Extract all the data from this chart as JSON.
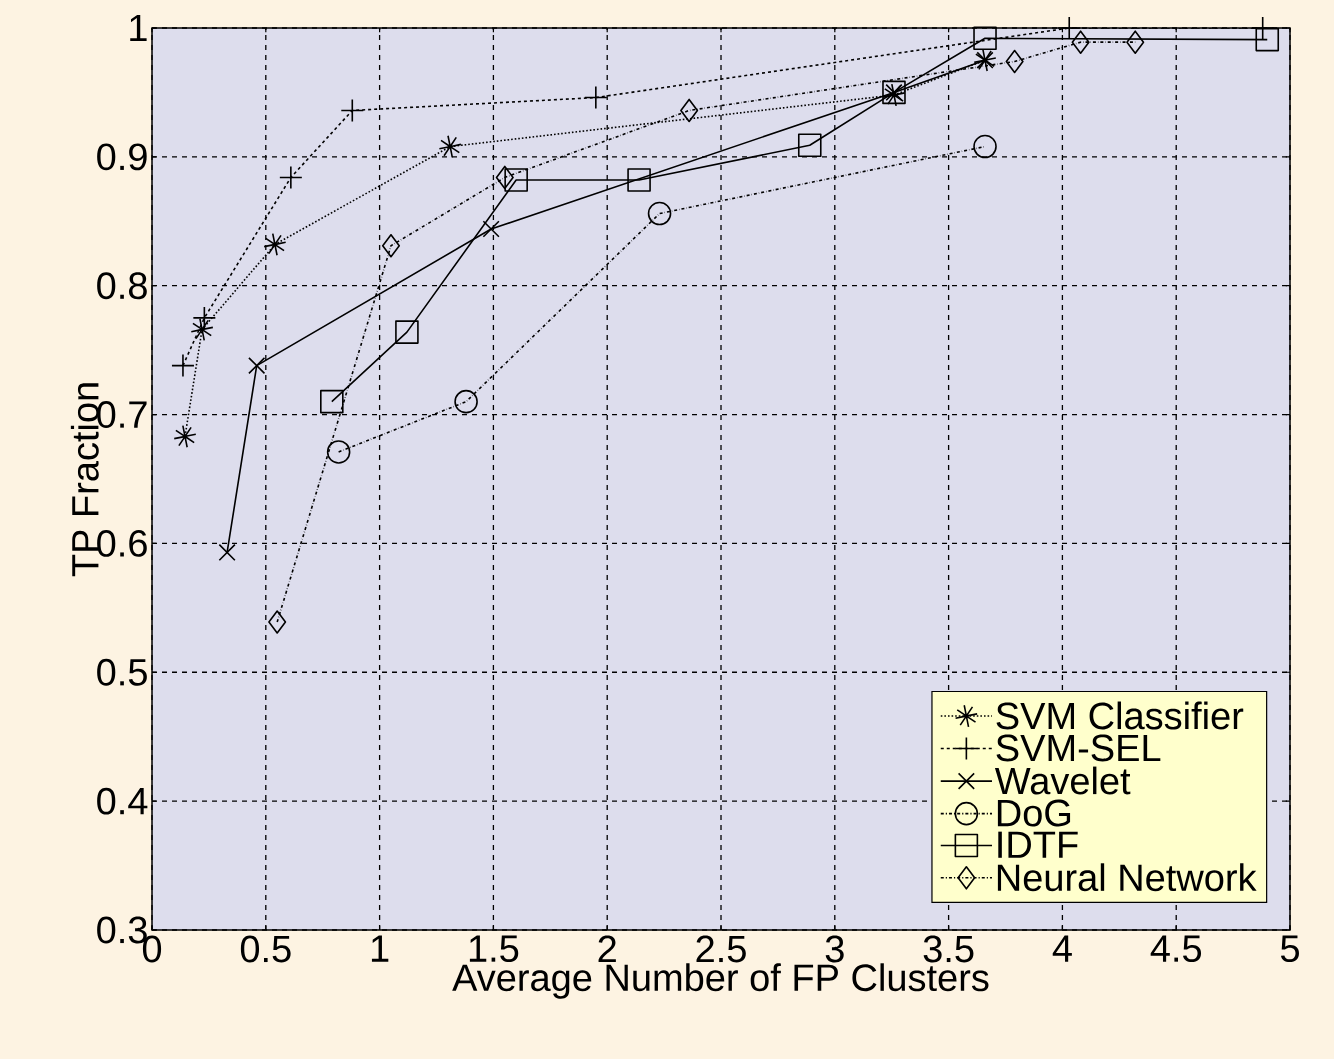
{
  "chart_data": {
    "type": "line",
    "xlabel": "Average Number of FP Clusters",
    "ylabel": "TP Fraction",
    "xlim": [
      0,
      5
    ],
    "ylim": [
      0.3,
      1
    ],
    "xticks": [
      0,
      0.5,
      1,
      1.5,
      2,
      2.5,
      3,
      3.5,
      4,
      4.5,
      5
    ],
    "yticks": [
      0.3,
      0.4,
      0.5,
      0.6,
      0.7,
      0.8,
      0.9,
      1
    ],
    "grid": true,
    "legend": "bottom right",
    "series": [
      {
        "name": "SVM Classifier",
        "color": "#000000",
        "marker": "cross",
        "line_style": "dotted",
        "x": [
          0.145,
          0.22,
          0.54,
          1.31,
          3.26,
          3.66
        ],
        "values": [
          0.683,
          0.766,
          0.832,
          0.908,
          0.948,
          0.975
        ]
      },
      {
        "name": "SVM-SEL",
        "color": "#000000",
        "marker": "cross",
        "line_style": "dashed",
        "x": [
          0.136,
          0.23,
          0.61,
          0.88,
          1.95,
          4.03,
          4.88
        ],
        "values": [
          0.738,
          0.775,
          0.884,
          0.936,
          0.946,
          1.0,
          1.0
        ]
      },
      {
        "name": "Wavelet",
        "color": "#000000",
        "marker": "cross",
        "line_style": "solid",
        "x": [
          0.33,
          0.46,
          1.49,
          3.26,
          3.66
        ],
        "values": [
          0.593,
          0.738,
          0.844,
          0.95,
          0.975
        ]
      },
      {
        "name": "DoG",
        "color": "#000000",
        "marker": "circle",
        "line_style": "dashdot",
        "x": [
          0.82,
          1.38,
          2.23,
          3.66
        ],
        "values": [
          0.671,
          0.71,
          0.856,
          0.908
        ]
      },
      {
        "name": "IDTF",
        "color": "#000000",
        "marker": "square",
        "line_style": "solid",
        "x": [
          0.79,
          1.12,
          1.6,
          2.14,
          2.89,
          3.26,
          3.66,
          4.9
        ],
        "values": [
          0.71,
          0.764,
          0.882,
          0.882,
          0.909,
          0.95,
          0.992,
          0.991
        ]
      },
      {
        "name": "Neural Network",
        "color": "#000000",
        "marker": "diamond",
        "line_style": "dashdot",
        "x": [
          0.55,
          1.05,
          1.55,
          2.36,
          3.79,
          4.08,
          4.32
        ],
        "values": [
          0.539,
          0.831,
          0.884,
          0.936,
          0.974,
          0.989,
          0.989
        ]
      }
    ]
  }
}
